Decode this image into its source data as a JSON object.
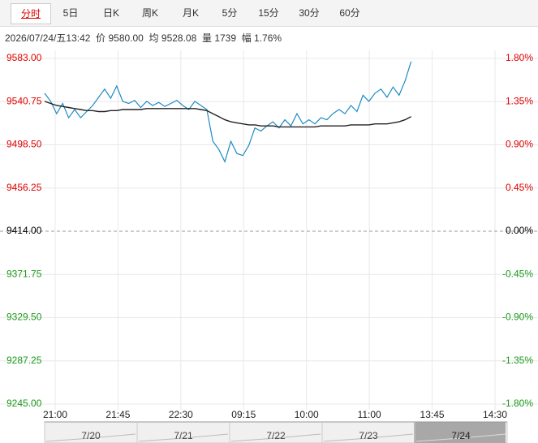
{
  "tabs": [
    "分时",
    "5日",
    "日K",
    "周K",
    "月K",
    "5分",
    "15分",
    "30分",
    "60分"
  ],
  "info": {
    "datetime": "2026/07/24/五13:42",
    "price": "9580.00",
    "average": "9528.08",
    "volume_label": "量",
    "volume": "1739",
    "change_label": "幅",
    "change": "1.76%"
  },
  "chart_data": {
    "type": "line",
    "time_labels": [
      "21:00",
      "21:45",
      "22:30",
      "09:15",
      "10:00",
      "11:00",
      "13:45",
      "14:30"
    ],
    "series": [
      {
        "name": "价",
        "color": "#1f8bc4",
        "values": [
          9549,
          9541,
          9529,
          9539,
          9525,
          9533,
          9525,
          9531,
          9537,
          9545,
          9553,
          9544,
          9556,
          9541,
          9539,
          9542,
          9535,
          9541,
          9537,
          9540,
          9536,
          9539,
          9542,
          9537,
          9533,
          9541,
          9537,
          9533,
          9502,
          9494,
          9482,
          9502,
          9490,
          9488,
          9498,
          9515,
          9512,
          9517,
          9521,
          9515,
          9523,
          9517,
          9529,
          9519,
          9523,
          9519,
          9525,
          9523,
          9529,
          9533,
          9529,
          9537,
          9531,
          9547,
          9541,
          9549,
          9553,
          9545,
          9555,
          9547,
          9561,
          9580,
          null,
          null,
          null,
          null,
          null,
          null,
          null,
          null,
          null,
          null,
          null,
          null,
          null,
          null,
          null,
          null
        ]
      },
      {
        "name": "均",
        "color": "#222222",
        "values": [
          9541,
          9539,
          9537,
          9536,
          9535,
          9534,
          9533,
          9532,
          9532,
          9531,
          9531,
          9532,
          9532,
          9533,
          9533,
          9533,
          9533,
          9534,
          9534,
          9534,
          9534,
          9534,
          9534,
          9534,
          9534,
          9534,
          9533,
          9532,
          9529,
          9526,
          9523,
          9521,
          9520,
          9519,
          9518,
          9518,
          9517,
          9517,
          9517,
          9516,
          9516,
          9516,
          9516,
          9516,
          9516,
          9516,
          9517,
          9517,
          9517,
          9517,
          9517,
          9518,
          9518,
          9518,
          9518,
          9519,
          9519,
          9519,
          9520,
          9521,
          9523,
          9526,
          null,
          null,
          null,
          null,
          null,
          null,
          null,
          null,
          null,
          null,
          null,
          null,
          null,
          null,
          null,
          null
        ]
      }
    ],
    "ylim": [
      9245,
      9583
    ],
    "yticks": [
      {
        "value": 9583,
        "label": "9583.00"
      },
      {
        "value": 9540.75,
        "label": "9540.75"
      },
      {
        "value": 9498.5,
        "label": "9498.50"
      },
      {
        "value": 9456.25,
        "label": "9456.25"
      },
      {
        "value": 9414,
        "label": "9414.00"
      },
      {
        "value": 9371.75,
        "label": "9371.75"
      },
      {
        "value": 9329.5,
        "label": "9329.50"
      },
      {
        "value": 9287.25,
        "label": "9287.25"
      },
      {
        "value": 9245,
        "label": "9245.00"
      }
    ],
    "y2lim": [
      -1.8,
      1.8
    ],
    "y2ticks": [
      {
        "value": 1.8,
        "label": "1.80%"
      },
      {
        "value": 1.35,
        "label": "1.35%"
      },
      {
        "value": 0.9,
        "label": "0.90%"
      },
      {
        "value": 0.45,
        "label": "0.45%"
      },
      {
        "value": 0,
        "label": "0.00%"
      },
      {
        "value": -0.45,
        "label": "-0.45%"
      },
      {
        "value": -0.9,
        "label": "-0.90%"
      },
      {
        "value": -1.35,
        "label": "-1.35%"
      },
      {
        "value": -1.8,
        "label": "-1.80%"
      }
    ],
    "grid": true,
    "nav_dates": [
      "7/20",
      "7/21",
      "7/22",
      "7/23",
      "7/24"
    ]
  }
}
